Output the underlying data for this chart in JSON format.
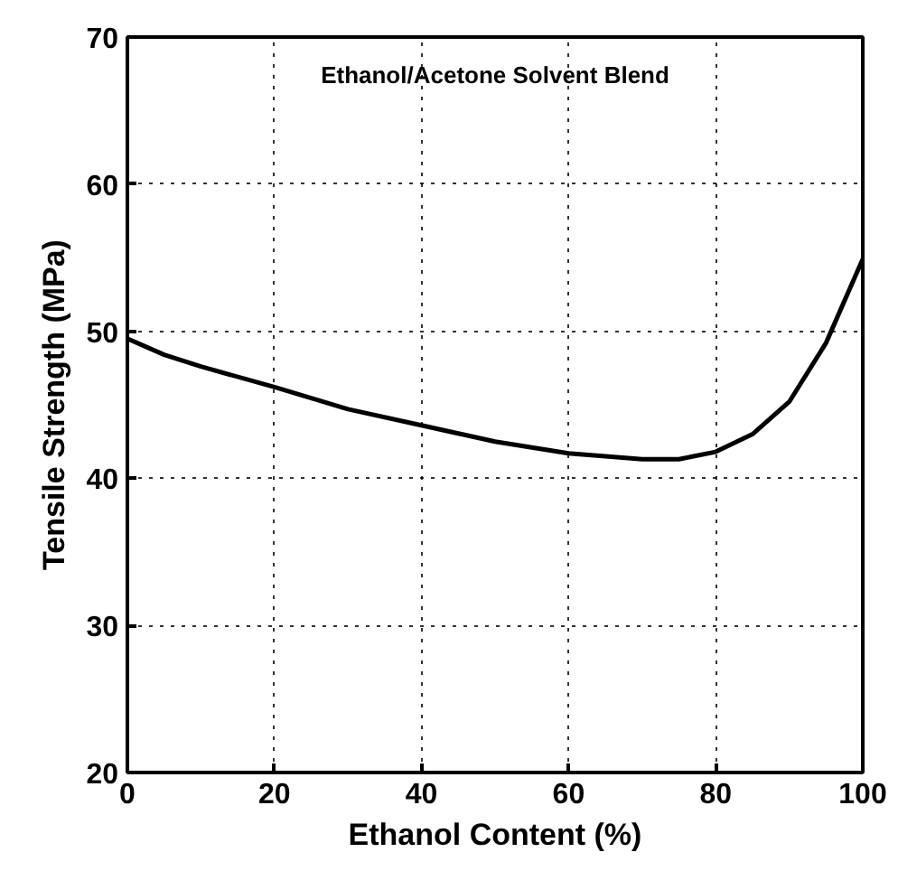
{
  "chart_data": {
    "type": "line",
    "xlabel": "Ethanol Content (%)",
    "ylabel": "Tensile Strength (MPa)",
    "annotations": [
      "Ethanol/Acetone Solvent Blend"
    ],
    "x": [
      0,
      5,
      10,
      20,
      30,
      40,
      50,
      60,
      70,
      75,
      80,
      85,
      90,
      95,
      100
    ],
    "series": [
      {
        "color": "#000000",
        "values": [
          49.5,
          48.4,
          47.6,
          46.2,
          44.7,
          43.6,
          42.5,
          41.7,
          41.3,
          41.3,
          41.8,
          43.0,
          45.2,
          49.2,
          54.9
        ]
      }
    ],
    "xlim": [
      0,
      100
    ],
    "ylim": [
      20,
      70
    ],
    "xticks": [
      0,
      20,
      40,
      60,
      80,
      100
    ],
    "yticks": [
      20,
      30,
      40,
      50,
      60,
      70
    ],
    "grid": true,
    "marker": "none",
    "line_style": "solid"
  }
}
